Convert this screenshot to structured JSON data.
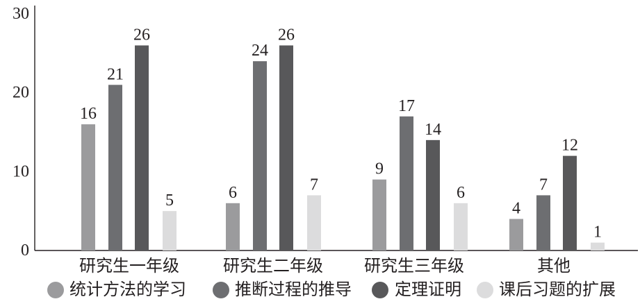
{
  "chart_data": {
    "type": "bar",
    "categories": [
      "研究生一年级",
      "研究生二年级",
      "研究生三年级",
      "其他"
    ],
    "series": [
      {
        "name": "统计方法的学习",
        "values": [
          16,
          6,
          9,
          4
        ],
        "color": "#9b9b9d"
      },
      {
        "name": "推断过程的推导",
        "values": [
          21,
          24,
          17,
          7
        ],
        "color": "#6d6e71"
      },
      {
        "name": "定理证明",
        "values": [
          26,
          26,
          14,
          12
        ],
        "color": "#58585a"
      },
      {
        "name": "课后习题的扩展",
        "values": [
          5,
          7,
          6,
          1
        ],
        "color": "#dcdcdd"
      }
    ],
    "ylim": [
      0,
      30
    ],
    "yticks": [
      0,
      10,
      20,
      30
    ],
    "grid": false,
    "legend_position": "bottom",
    "data_labels": true
  }
}
